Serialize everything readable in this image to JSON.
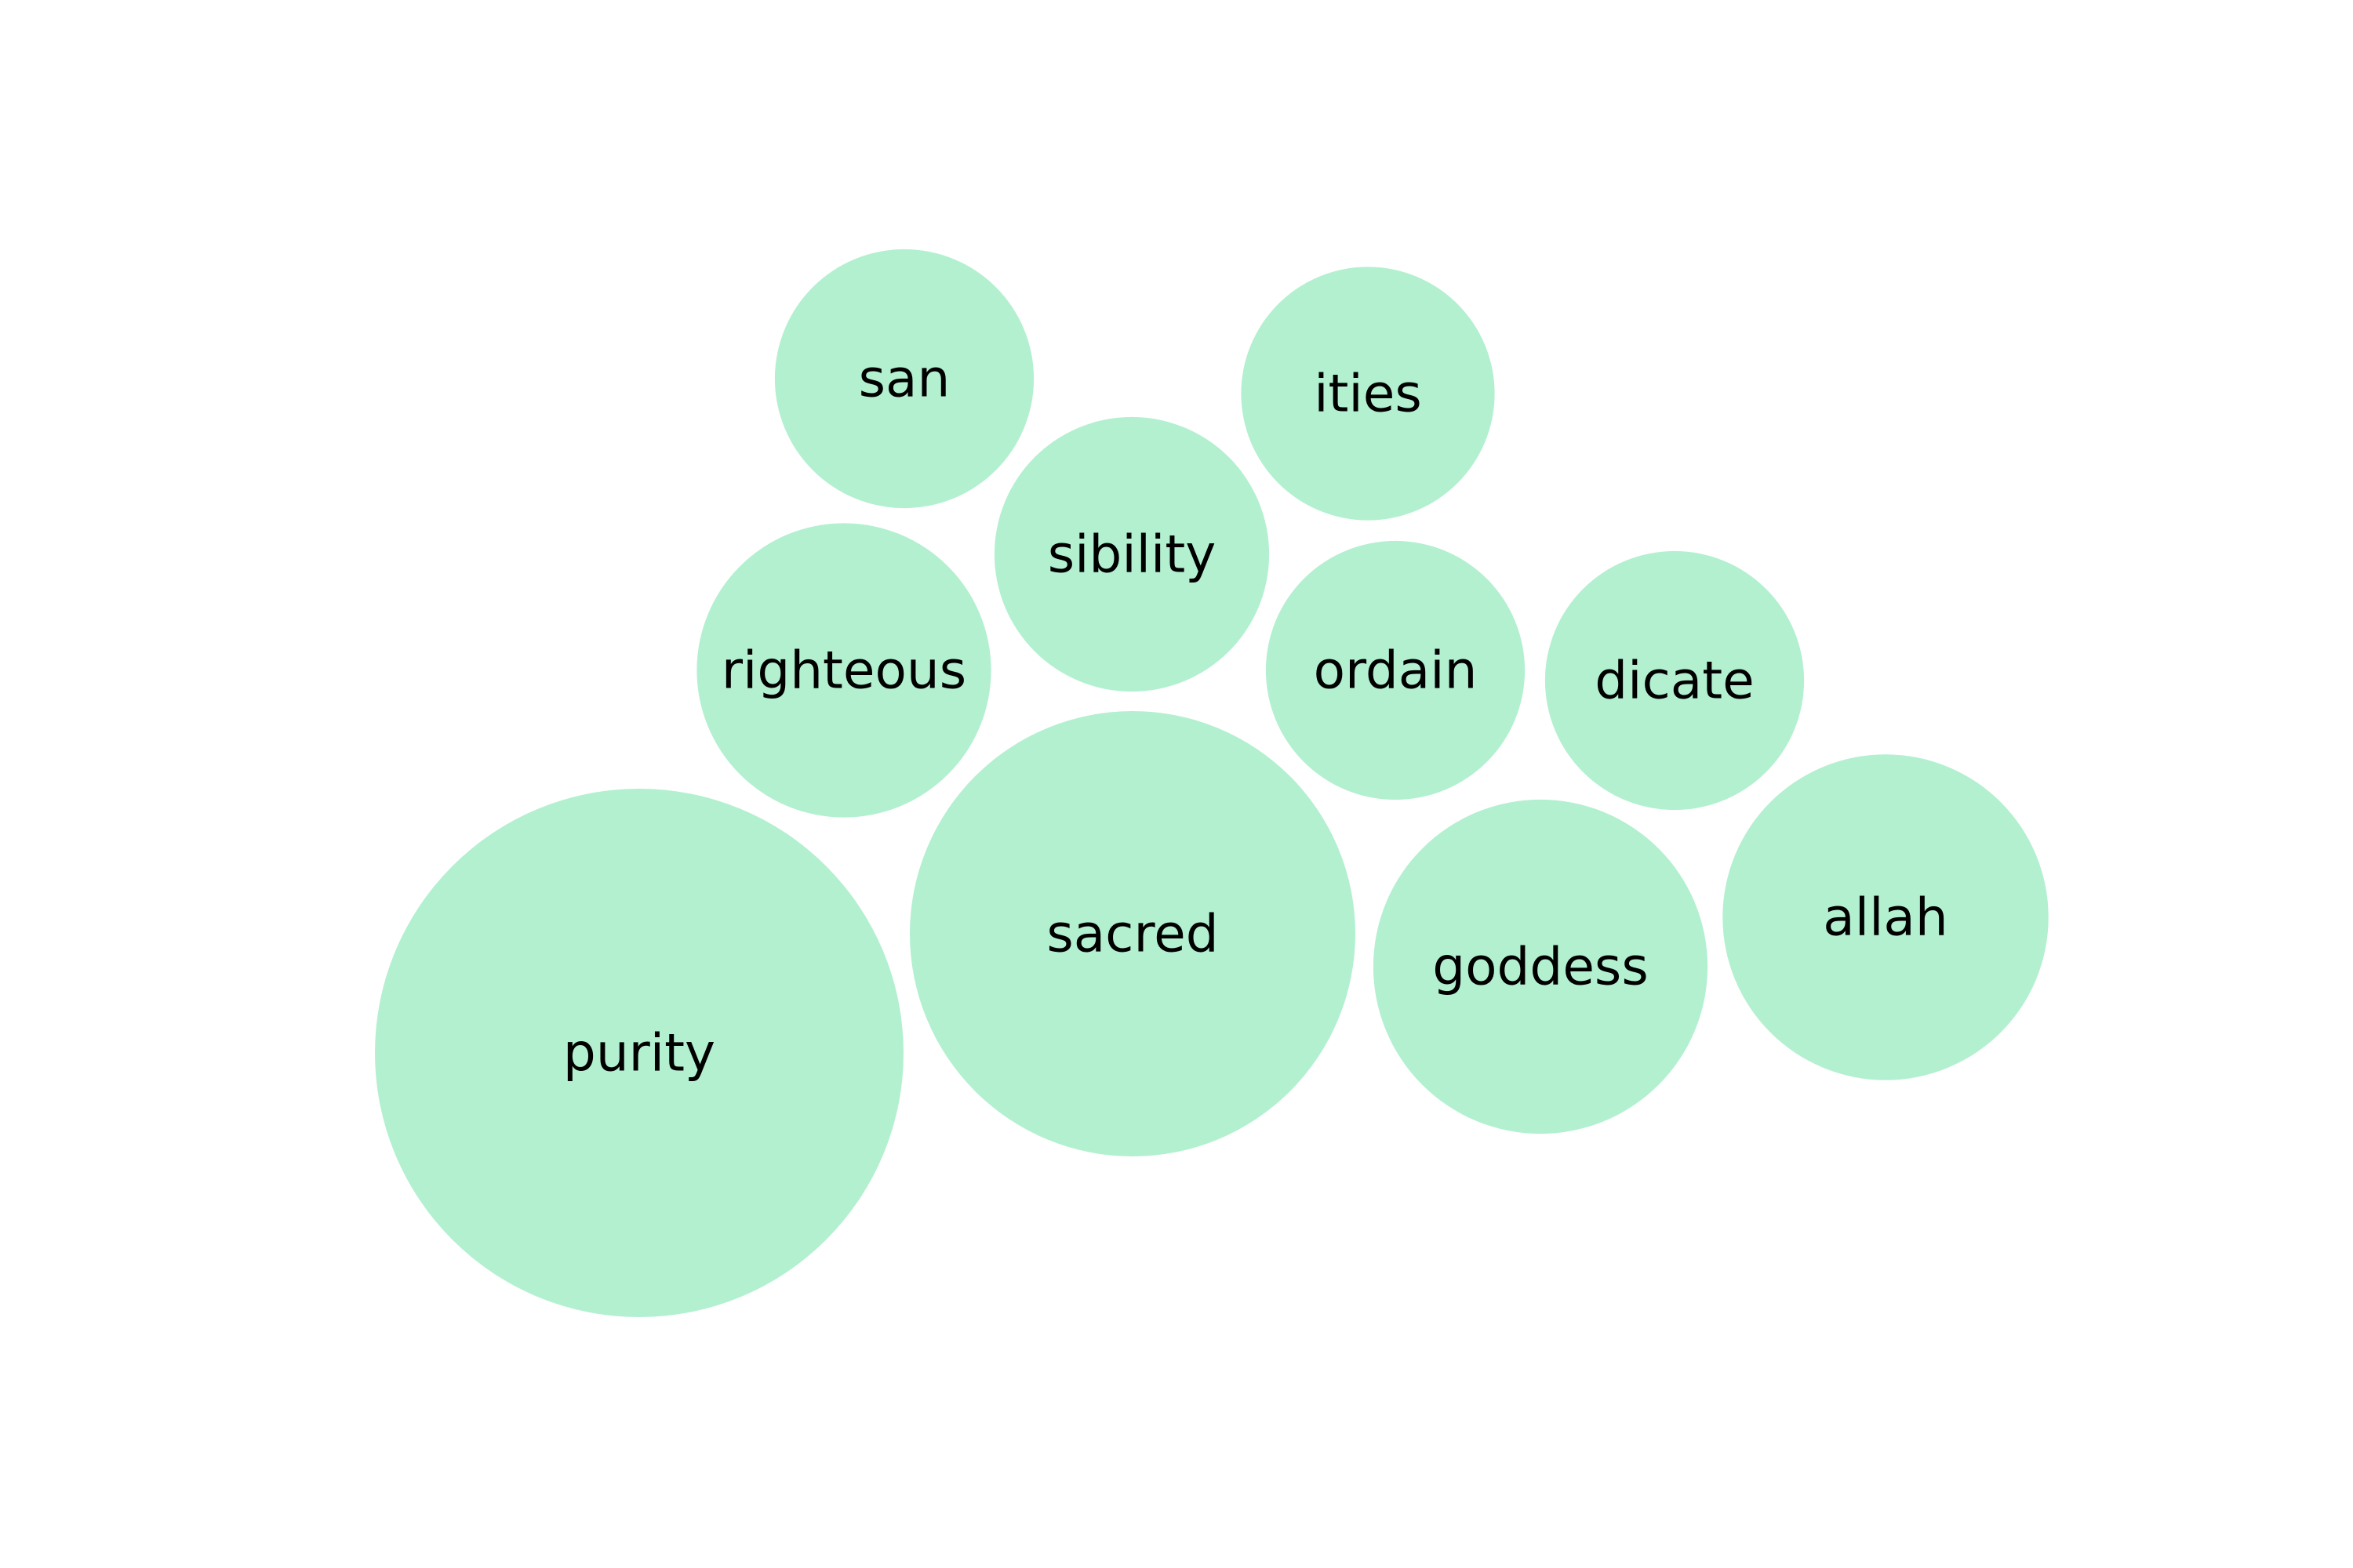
{
  "chart_data": {
    "type": "bubble",
    "bubble_color": "#b2f0d0",
    "label_color": "#000000",
    "bubbles": [
      {
        "label": "purity",
        "value": 100
      },
      {
        "label": "sacred",
        "value": 71
      },
      {
        "label": "goddess",
        "value": 40
      },
      {
        "label": "allah",
        "value": 38
      },
      {
        "label": "righteous",
        "value": 31
      },
      {
        "label": "sibility",
        "value": 27
      },
      {
        "label": "san",
        "value": 24
      },
      {
        "label": "ordain",
        "value": 24
      },
      {
        "label": "ities",
        "value": 23
      },
      {
        "label": "dicate",
        "value": 24
      }
    ]
  }
}
